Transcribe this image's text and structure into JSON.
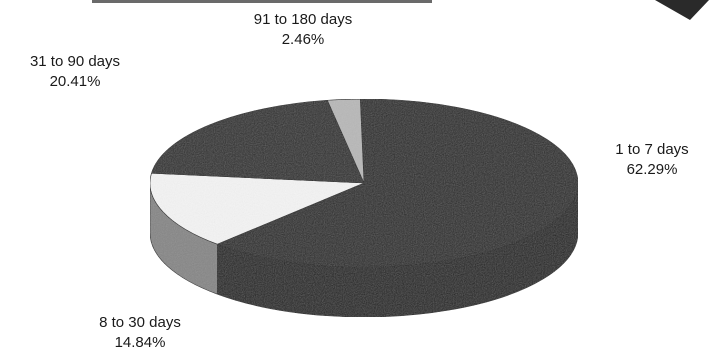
{
  "chart_data": {
    "type": "pie",
    "style": "3d",
    "title": "",
    "legend": "none",
    "slices": [
      {
        "label": "1 to 7 days",
        "value": 62.29,
        "value_label": "62.29%",
        "color": "#2b2b2b"
      },
      {
        "label": "8 to 30 days",
        "value": 14.84,
        "value_label": "14.84%",
        "color": "#f4f4f4"
      },
      {
        "label": "31 to 90 days",
        "value": 20.41,
        "value_label": "20.41%",
        "color": "#2f2f2f"
      },
      {
        "label": "91 to 180 days",
        "value": 2.46,
        "value_label": "2.46%",
        "color": "#b8b8b8"
      }
    ]
  }
}
